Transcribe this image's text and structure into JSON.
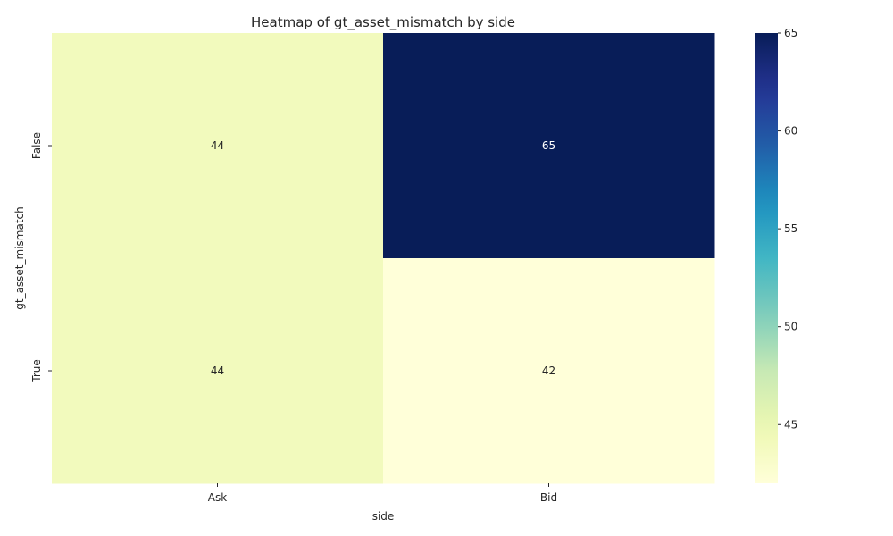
{
  "chart_data": {
    "type": "heatmap",
    "title": "Heatmap of gt_asset_mismatch by side",
    "xlabel": "side",
    "ylabel": "gt_asset_mismatch",
    "x_categories": [
      "Ask",
      "Bid"
    ],
    "y_categories": [
      "False",
      "True"
    ],
    "values": [
      [
        44,
        65
      ],
      [
        44,
        42
      ]
    ],
    "value_range": [
      42,
      65
    ],
    "colormap": "YlGnBu",
    "colorbar": {
      "ticks": [
        45,
        50,
        55,
        60,
        65
      ],
      "tick_labels": [
        "45",
        "50",
        "55",
        "60",
        "65"
      ]
    },
    "grid": false,
    "legend": "colorbar-right"
  }
}
